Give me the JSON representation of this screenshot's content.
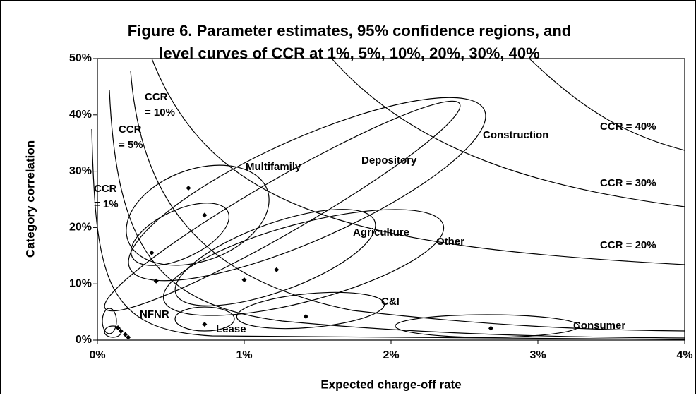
{
  "chart_data": {
    "type": "scatter",
    "title": [
      "Figure 6. Parameter estimates, 95% confidence regions, and",
      "level curves of CCR at 1%, 5%, 10%, 20%, 30%, 40%"
    ],
    "xlabel": "Expected charge-off rate",
    "ylabel": "Category correlation",
    "x": [
      0.62,
      0.73,
      0.37,
      0.4,
      1.0,
      1.22,
      1.42,
      0.73,
      2.68,
      0.14,
      0.16,
      0.19,
      0.21
    ],
    "values": [
      27,
      22.2,
      15.5,
      10.5,
      10.7,
      12.5,
      4.2,
      2.8,
      2.1,
      2.2,
      1.6,
      1.0,
      0.5
    ],
    "color": "#000000",
    "xlim": [
      0,
      4
    ],
    "ylim": [
      0,
      50
    ],
    "xticks": [
      {
        "value": 0,
        "label": "0%"
      },
      {
        "value": 1,
        "label": "1%"
      },
      {
        "value": 2,
        "label": "2%"
      },
      {
        "value": 3,
        "label": "3%"
      },
      {
        "value": 4,
        "label": "4%"
      }
    ],
    "yticks": [
      {
        "value": 0,
        "label": "0%"
      },
      {
        "value": 10,
        "label": "10%"
      },
      {
        "value": 20,
        "label": "20%"
      },
      {
        "value": 30,
        "label": "30%"
      },
      {
        "value": 40,
        "label": "40%"
      },
      {
        "value": 50,
        "label": "50%"
      }
    ],
    "annotations": [
      [
        "CCR = 40%"
      ],
      [
        "CCR = 30%"
      ],
      [
        "CCR = 20%"
      ],
      [
        "CCR",
        "= 10%"
      ],
      [
        "CCR",
        "= 5%"
      ],
      [
        "CCR",
        "= 1%"
      ],
      [
        "Construction"
      ],
      [
        "Depository"
      ],
      [
        "Multifamily"
      ],
      [
        "Agriculture"
      ],
      [
        "Other"
      ],
      [
        "C&I"
      ],
      [
        "NFNR"
      ],
      [
        "Lease"
      ],
      [
        "Consumer"
      ]
    ]
  }
}
